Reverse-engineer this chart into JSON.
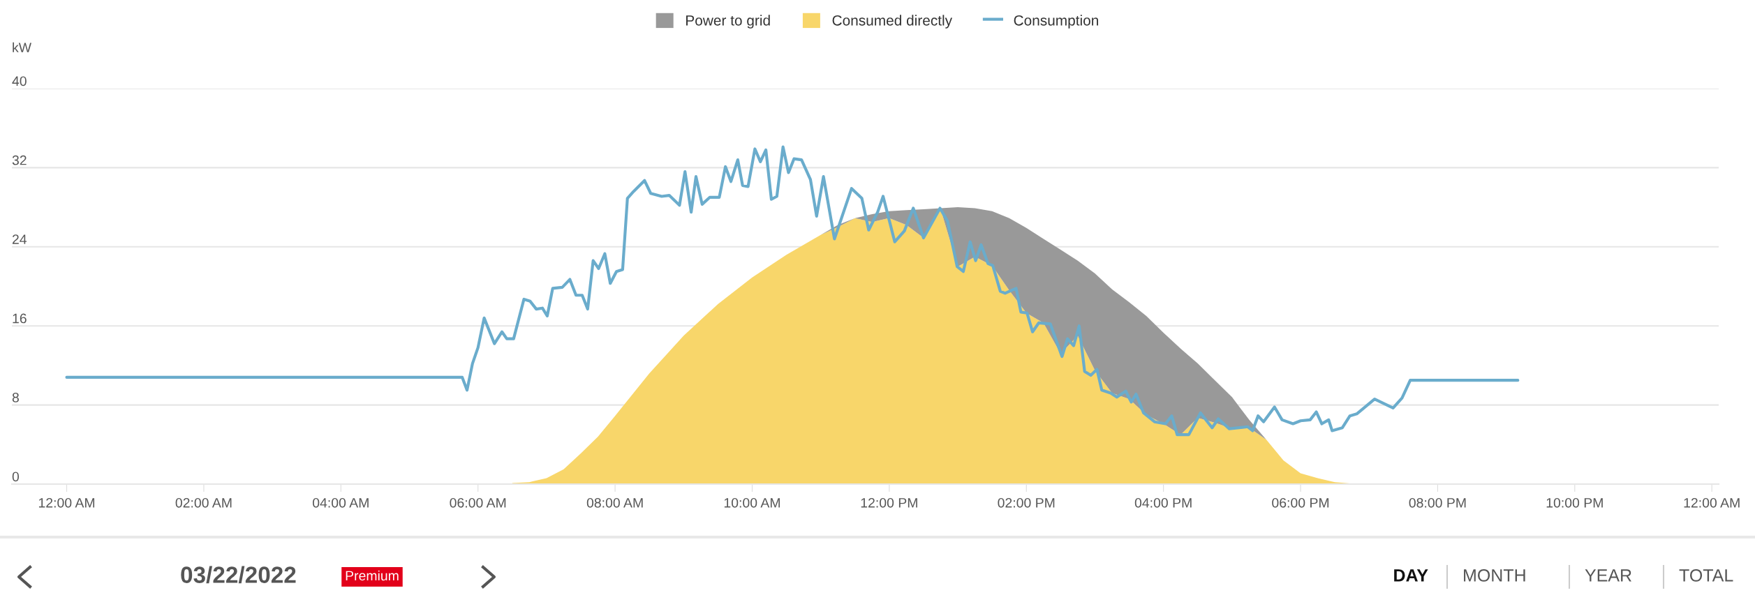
{
  "chart_data": {
    "type": "area",
    "ylabel": "kW",
    "stacked": true,
    "legend": "top",
    "grid": "y",
    "xlim": [
      -0.8,
      24.1
    ],
    "ylim": [
      0,
      40
    ],
    "xticks": [
      {
        "value": 0,
        "label": "12:00 AM"
      },
      {
        "value": 2,
        "label": "02:00 AM"
      },
      {
        "value": 4,
        "label": "04:00 AM"
      },
      {
        "value": 6,
        "label": "06:00 AM"
      },
      {
        "value": 8,
        "label": "08:00 AM"
      },
      {
        "value": 10,
        "label": "10:00 AM"
      },
      {
        "value": 12,
        "label": "12:00 PM"
      },
      {
        "value": 14,
        "label": "02:00 PM"
      },
      {
        "value": 16,
        "label": "04:00 PM"
      },
      {
        "value": 18,
        "label": "06:00 PM"
      },
      {
        "value": 20,
        "label": "08:00 PM"
      },
      {
        "value": 22,
        "label": "10:00 PM"
      },
      {
        "value": 24,
        "label": "12:00 AM"
      }
    ],
    "yticks": [
      0,
      8,
      16,
      24,
      32,
      40
    ],
    "x": [
      6.5,
      6.75,
      7,
      7.25,
      7.5,
      7.75,
      8,
      8.5,
      9,
      9.5,
      10,
      10.5,
      11,
      11.25,
      11.5,
      11.75,
      12,
      12.25,
      12.5,
      12.75,
      13,
      13.25,
      13.5,
      13.75,
      14,
      14.25,
      14.5,
      14.75,
      15,
      15.25,
      15.5,
      15.75,
      16,
      16.25,
      16.5,
      16.75,
      17,
      17.25,
      17.5,
      17.75,
      18,
      18.25,
      18.5,
      18.75,
      19
    ],
    "series": [
      {
        "name": "Consumed directly",
        "color": "#f8d66a",
        "values": [
          0.1,
          0.2,
          0.6,
          1.5,
          3.1,
          4.8,
          6.9,
          11.2,
          15.0,
          18.2,
          20.9,
          23.2,
          25.2,
          26.0,
          26.9,
          26.5,
          26.9,
          26.2,
          24.9,
          27.8,
          22.0,
          23.0,
          22.1,
          19.6,
          17.3,
          16.3,
          13.2,
          15.0,
          11.5,
          9.2,
          8.6,
          7.0,
          6.1,
          5.0,
          6.7,
          6.2,
          5.6,
          5.7,
          4.5,
          2.4,
          1.1,
          0.6,
          0.2,
          0.05,
          0
        ]
      },
      {
        "name": "Power to grid",
        "color": "#999999",
        "values": [
          0,
          0,
          0,
          0,
          0,
          0,
          0,
          0,
          0,
          0,
          0,
          0,
          0,
          0.2,
          0,
          0.8,
          0.7,
          1.5,
          2.9,
          0.1,
          6.0,
          4.9,
          5.5,
          7.3,
          8.6,
          8.5,
          10.5,
          7.6,
          9.8,
          10.5,
          9.8,
          10.0,
          9.2,
          8.7,
          5.5,
          4.3,
          3.2,
          0.8,
          0,
          0,
          0,
          0,
          0,
          0,
          0
        ]
      },
      {
        "name": "Consumption",
        "type": "line",
        "color": "#6aaccc",
        "x": [
          0,
          5.77,
          5.84,
          5.92,
          6.0,
          6.09,
          6.24,
          6.35,
          6.42,
          6.52,
          6.67,
          6.76,
          6.85,
          6.94,
          7.01,
          7.09,
          7.23,
          7.34,
          7.43,
          7.52,
          7.6,
          7.68,
          7.76,
          7.85,
          7.93,
          8.02,
          8.11,
          8.18,
          8.27,
          8.43,
          8.52,
          8.68,
          8.79,
          8.94,
          9.02,
          9.11,
          9.18,
          9.27,
          9.38,
          9.52,
          9.61,
          9.69,
          9.79,
          9.86,
          9.94,
          10.04,
          10.12,
          10.2,
          10.28,
          10.36,
          10.45,
          10.53,
          10.61,
          10.72,
          10.85,
          10.94,
          11.04,
          11.2,
          11.45,
          11.6,
          11.7,
          11.83,
          11.91,
          12.08,
          12.22,
          12.35,
          12.5,
          12.74,
          12.85,
          12.99,
          13.08,
          13.18,
          13.26,
          13.34,
          13.44,
          13.51,
          13.62,
          13.69,
          13.85,
          13.92,
          14.01,
          14.09,
          14.18,
          14.35,
          14.52,
          14.6,
          14.69,
          14.77,
          14.85,
          14.94,
          15.03,
          15.1,
          15.23,
          15.32,
          15.45,
          15.53,
          15.6,
          15.71,
          15.87,
          16.03,
          16.12,
          16.2,
          16.37,
          16.54,
          16.71,
          16.8,
          16.96,
          17.23,
          17.3,
          17.38,
          17.46,
          17.62,
          17.73,
          17.89,
          18.0,
          18.14,
          18.23,
          18.31,
          18.41,
          18.46,
          18.61,
          18.72,
          18.82,
          19.08,
          19.35,
          19.48,
          19.6,
          21.17
        ],
        "values": [
          10.8,
          10.8,
          9.5,
          12.2,
          13.8,
          16.8,
          14.2,
          15.4,
          14.7,
          14.7,
          18.7,
          18.5,
          17.7,
          17.8,
          17.0,
          19.8,
          19.9,
          20.7,
          19.1,
          19.1,
          17.7,
          22.6,
          21.8,
          23.3,
          20.3,
          21.5,
          21.7,
          28.9,
          29.6,
          30.7,
          29.4,
          29.1,
          29.2,
          28.2,
          31.6,
          27.5,
          31.1,
          28.3,
          29.0,
          29.0,
          32.1,
          30.6,
          32.8,
          30.2,
          30.1,
          33.9,
          32.6,
          33.8,
          28.8,
          29.1,
          34.1,
          31.5,
          32.9,
          32.8,
          30.8,
          27.1,
          31.1,
          24.8,
          29.9,
          28.9,
          25.7,
          27.5,
          29.1,
          24.5,
          25.6,
          27.9,
          24.9,
          27.9,
          26.6,
          22.0,
          21.5,
          24.5,
          22.6,
          24.2,
          22.3,
          22.1,
          19.5,
          19.3,
          19.8,
          17.4,
          17.3,
          15.4,
          16.3,
          16.2,
          12.9,
          14.7,
          14.0,
          16.0,
          11.4,
          11.0,
          11.6,
          9.5,
          9.2,
          8.8,
          9.4,
          8.3,
          9.1,
          7.2,
          6.3,
          6.1,
          6.9,
          5.0,
          5.0,
          7.2,
          5.7,
          6.6,
          5.6,
          5.8,
          5.4,
          6.9,
          6.3,
          7.8,
          6.5,
          6.1,
          6.4,
          6.5,
          7.3,
          6.1,
          6.5,
          5.4,
          5.7,
          6.9,
          7.1,
          8.6,
          7.7,
          8.7,
          10.5,
          10.5
        ]
      }
    ],
    "annotations": [
      "03/22/2022",
      "Premium",
      "DAY",
      "MONTH",
      "YEAR",
      "TOTAL"
    ]
  }
}
